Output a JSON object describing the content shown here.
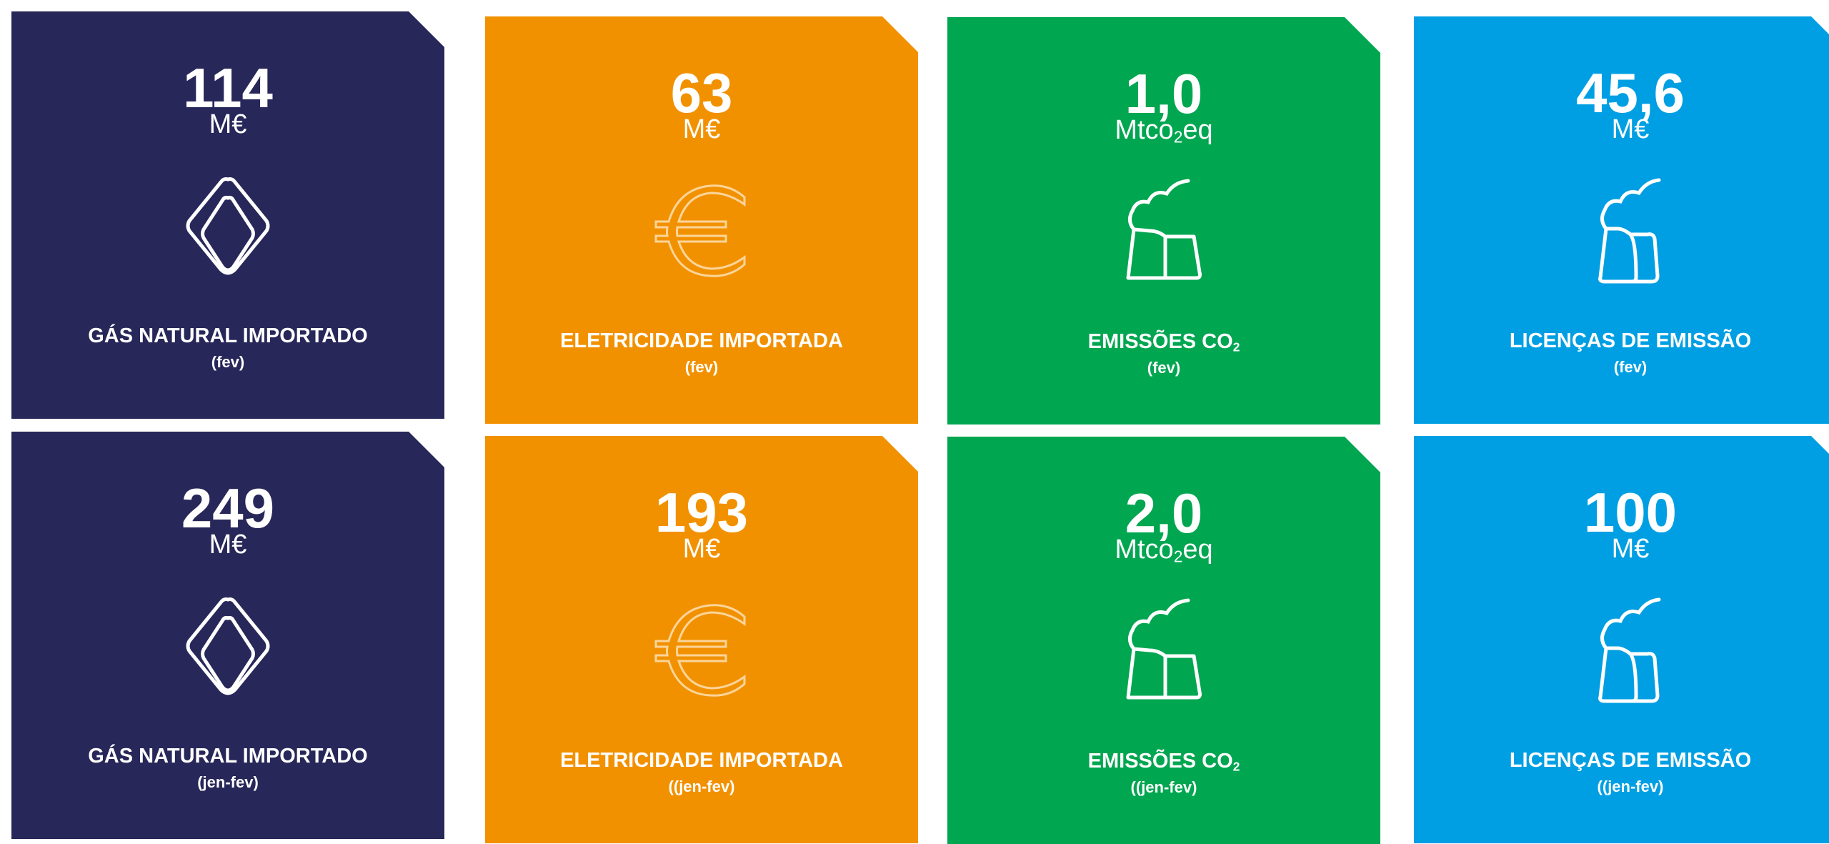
{
  "cards": [
    {
      "value": "114",
      "unit": "M€",
      "label": "GÁS NATURAL IMPORTADO",
      "period": "(fev)"
    },
    {
      "value": "63",
      "unit": "M€",
      "label": "ELETRICIDADE IMPORTADA",
      "period": "(fev)"
    },
    {
      "value": "1,0",
      "unit": {
        "main": "Mtco",
        "sub": "2",
        "tail": "eq"
      },
      "label": {
        "main": "EMISSÕES CO",
        "sub": "2"
      },
      "period": "(fev)"
    },
    {
      "value": "45,6",
      "unit": "M€",
      "label": "LICENÇAS DE EMISSÃO",
      "period": "(fev)"
    },
    {
      "value": "249",
      "unit": "M€",
      "label": "GÁS NATURAL IMPORTADO",
      "period": "(jen-fev)"
    },
    {
      "value": "193",
      "unit": "M€",
      "label": "ELETRICIDADE IMPORTADA",
      "period": "((jen-fev)"
    },
    {
      "value": "2,0",
      "unit": {
        "main": "Mtco",
        "sub": "2",
        "tail": "eq"
      },
      "label": {
        "main": "EMISSÕES CO",
        "sub": "2"
      },
      "period": "((jen-fev)"
    },
    {
      "value": "100",
      "unit": "M€",
      "label": "LICENÇAS DE EMISSÃO",
      "period": "((jen-fev)"
    }
  ]
}
